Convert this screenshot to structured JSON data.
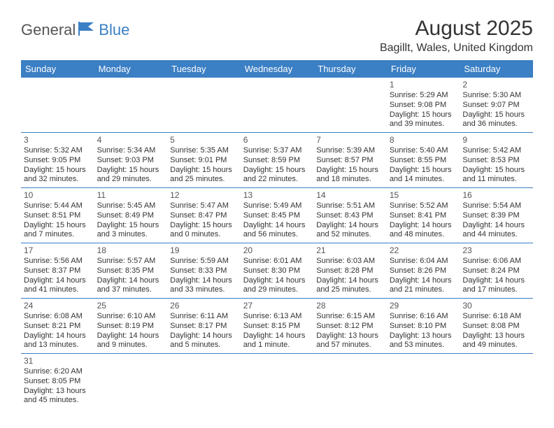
{
  "logo": {
    "text1": "General",
    "text2": "Blue"
  },
  "header": {
    "month_title": "August 2025",
    "location": "Bagillt, Wales, United Kingdom"
  },
  "colors": {
    "header_bg": "#3b7fc4",
    "header_text": "#ffffff",
    "border": "#3b7fc4",
    "text": "#333333"
  },
  "calendar": {
    "day_headers": [
      "Sunday",
      "Monday",
      "Tuesday",
      "Wednesday",
      "Thursday",
      "Friday",
      "Saturday"
    ],
    "weeks": [
      [
        null,
        null,
        null,
        null,
        null,
        {
          "n": "1",
          "sr": "Sunrise: 5:29 AM",
          "ss": "Sunset: 9:08 PM",
          "d1": "Daylight: 15 hours",
          "d2": "and 39 minutes."
        },
        {
          "n": "2",
          "sr": "Sunrise: 5:30 AM",
          "ss": "Sunset: 9:07 PM",
          "d1": "Daylight: 15 hours",
          "d2": "and 36 minutes."
        }
      ],
      [
        {
          "n": "3",
          "sr": "Sunrise: 5:32 AM",
          "ss": "Sunset: 9:05 PM",
          "d1": "Daylight: 15 hours",
          "d2": "and 32 minutes."
        },
        {
          "n": "4",
          "sr": "Sunrise: 5:34 AM",
          "ss": "Sunset: 9:03 PM",
          "d1": "Daylight: 15 hours",
          "d2": "and 29 minutes."
        },
        {
          "n": "5",
          "sr": "Sunrise: 5:35 AM",
          "ss": "Sunset: 9:01 PM",
          "d1": "Daylight: 15 hours",
          "d2": "and 25 minutes."
        },
        {
          "n": "6",
          "sr": "Sunrise: 5:37 AM",
          "ss": "Sunset: 8:59 PM",
          "d1": "Daylight: 15 hours",
          "d2": "and 22 minutes."
        },
        {
          "n": "7",
          "sr": "Sunrise: 5:39 AM",
          "ss": "Sunset: 8:57 PM",
          "d1": "Daylight: 15 hours",
          "d2": "and 18 minutes."
        },
        {
          "n": "8",
          "sr": "Sunrise: 5:40 AM",
          "ss": "Sunset: 8:55 PM",
          "d1": "Daylight: 15 hours",
          "d2": "and 14 minutes."
        },
        {
          "n": "9",
          "sr": "Sunrise: 5:42 AM",
          "ss": "Sunset: 8:53 PM",
          "d1": "Daylight: 15 hours",
          "d2": "and 11 minutes."
        }
      ],
      [
        {
          "n": "10",
          "sr": "Sunrise: 5:44 AM",
          "ss": "Sunset: 8:51 PM",
          "d1": "Daylight: 15 hours",
          "d2": "and 7 minutes."
        },
        {
          "n": "11",
          "sr": "Sunrise: 5:45 AM",
          "ss": "Sunset: 8:49 PM",
          "d1": "Daylight: 15 hours",
          "d2": "and 3 minutes."
        },
        {
          "n": "12",
          "sr": "Sunrise: 5:47 AM",
          "ss": "Sunset: 8:47 PM",
          "d1": "Daylight: 15 hours",
          "d2": "and 0 minutes."
        },
        {
          "n": "13",
          "sr": "Sunrise: 5:49 AM",
          "ss": "Sunset: 8:45 PM",
          "d1": "Daylight: 14 hours",
          "d2": "and 56 minutes."
        },
        {
          "n": "14",
          "sr": "Sunrise: 5:51 AM",
          "ss": "Sunset: 8:43 PM",
          "d1": "Daylight: 14 hours",
          "d2": "and 52 minutes."
        },
        {
          "n": "15",
          "sr": "Sunrise: 5:52 AM",
          "ss": "Sunset: 8:41 PM",
          "d1": "Daylight: 14 hours",
          "d2": "and 48 minutes."
        },
        {
          "n": "16",
          "sr": "Sunrise: 5:54 AM",
          "ss": "Sunset: 8:39 PM",
          "d1": "Daylight: 14 hours",
          "d2": "and 44 minutes."
        }
      ],
      [
        {
          "n": "17",
          "sr": "Sunrise: 5:56 AM",
          "ss": "Sunset: 8:37 PM",
          "d1": "Daylight: 14 hours",
          "d2": "and 41 minutes."
        },
        {
          "n": "18",
          "sr": "Sunrise: 5:57 AM",
          "ss": "Sunset: 8:35 PM",
          "d1": "Daylight: 14 hours",
          "d2": "and 37 minutes."
        },
        {
          "n": "19",
          "sr": "Sunrise: 5:59 AM",
          "ss": "Sunset: 8:33 PM",
          "d1": "Daylight: 14 hours",
          "d2": "and 33 minutes."
        },
        {
          "n": "20",
          "sr": "Sunrise: 6:01 AM",
          "ss": "Sunset: 8:30 PM",
          "d1": "Daylight: 14 hours",
          "d2": "and 29 minutes."
        },
        {
          "n": "21",
          "sr": "Sunrise: 6:03 AM",
          "ss": "Sunset: 8:28 PM",
          "d1": "Daylight: 14 hours",
          "d2": "and 25 minutes."
        },
        {
          "n": "22",
          "sr": "Sunrise: 6:04 AM",
          "ss": "Sunset: 8:26 PM",
          "d1": "Daylight: 14 hours",
          "d2": "and 21 minutes."
        },
        {
          "n": "23",
          "sr": "Sunrise: 6:06 AM",
          "ss": "Sunset: 8:24 PM",
          "d1": "Daylight: 14 hours",
          "d2": "and 17 minutes."
        }
      ],
      [
        {
          "n": "24",
          "sr": "Sunrise: 6:08 AM",
          "ss": "Sunset: 8:21 PM",
          "d1": "Daylight: 14 hours",
          "d2": "and 13 minutes."
        },
        {
          "n": "25",
          "sr": "Sunrise: 6:10 AM",
          "ss": "Sunset: 8:19 PM",
          "d1": "Daylight: 14 hours",
          "d2": "and 9 minutes."
        },
        {
          "n": "26",
          "sr": "Sunrise: 6:11 AM",
          "ss": "Sunset: 8:17 PM",
          "d1": "Daylight: 14 hours",
          "d2": "and 5 minutes."
        },
        {
          "n": "27",
          "sr": "Sunrise: 6:13 AM",
          "ss": "Sunset: 8:15 PM",
          "d1": "Daylight: 14 hours",
          "d2": "and 1 minute."
        },
        {
          "n": "28",
          "sr": "Sunrise: 6:15 AM",
          "ss": "Sunset: 8:12 PM",
          "d1": "Daylight: 13 hours",
          "d2": "and 57 minutes."
        },
        {
          "n": "29",
          "sr": "Sunrise: 6:16 AM",
          "ss": "Sunset: 8:10 PM",
          "d1": "Daylight: 13 hours",
          "d2": "and 53 minutes."
        },
        {
          "n": "30",
          "sr": "Sunrise: 6:18 AM",
          "ss": "Sunset: 8:08 PM",
          "d1": "Daylight: 13 hours",
          "d2": "and 49 minutes."
        }
      ],
      [
        {
          "n": "31",
          "sr": "Sunrise: 6:20 AM",
          "ss": "Sunset: 8:05 PM",
          "d1": "Daylight: 13 hours",
          "d2": "and 45 minutes."
        },
        null,
        null,
        null,
        null,
        null,
        null
      ]
    ]
  }
}
